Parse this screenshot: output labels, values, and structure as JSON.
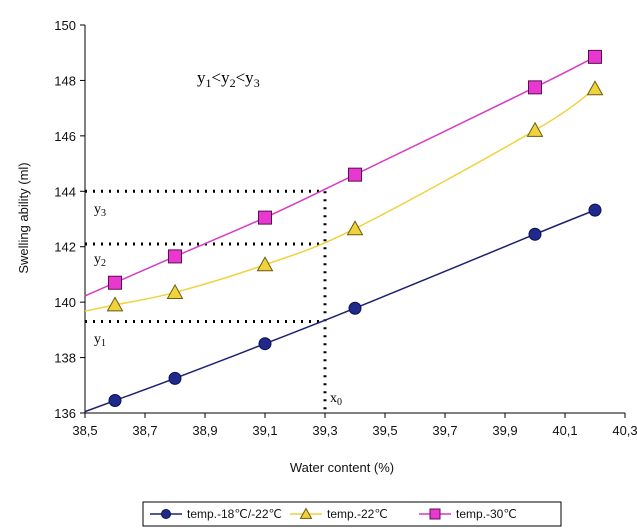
{
  "chart_data": {
    "type": "line",
    "xlabel": "Water content (%)",
    "ylabel": "Swelling ability (ml)",
    "xlim": [
      38.5,
      40.3
    ],
    "ylim": [
      136,
      150
    ],
    "x_ticks": [
      "38,5",
      "38,7",
      "38,9",
      "39,1",
      "39,3",
      "39,5",
      "39,7",
      "39,9",
      "40,1",
      "40,3"
    ],
    "y_ticks": [
      "136",
      "138",
      "140",
      "142",
      "144",
      "146",
      "148",
      "150"
    ],
    "grid": false,
    "legend_position": "bottom",
    "series": [
      {
        "name": "temp.-18℃/-22℃",
        "color": "#1f2a8a",
        "marker": "circle",
        "x": [
          38.6,
          38.8,
          39.1,
          39.4,
          40.0,
          40.2
        ],
        "y": [
          136.45,
          137.25,
          138.5,
          139.78,
          142.45,
          143.32
        ]
      },
      {
        "name": "temp.-22℃",
        "color": "#f0d23c",
        "marker": "triangle",
        "x": [
          38.6,
          38.8,
          39.1,
          39.4,
          40.0,
          40.2
        ],
        "y": [
          139.9,
          140.35,
          141.35,
          142.65,
          146.2,
          147.7
        ]
      },
      {
        "name": "temp.-30℃",
        "color": "#e838d0",
        "marker": "square",
        "x": [
          38.6,
          38.8,
          39.1,
          39.4,
          40.0,
          40.2
        ],
        "y": [
          140.7,
          141.65,
          143.05,
          144.6,
          147.75,
          148.85
        ]
      }
    ],
    "annotations": {
      "relation_parts": [
        "y",
        "1",
        "<y",
        "2",
        "<y",
        "3"
      ],
      "y1": {
        "main": "y",
        "sub": "1",
        "value": 139.3
      },
      "y2": {
        "main": "y",
        "sub": "2",
        "value": 142.1
      },
      "y3": {
        "main": "y",
        "sub": "3",
        "value": 144.0
      },
      "x0": {
        "main": "x",
        "sub": "0",
        "value": 39.3
      }
    }
  }
}
